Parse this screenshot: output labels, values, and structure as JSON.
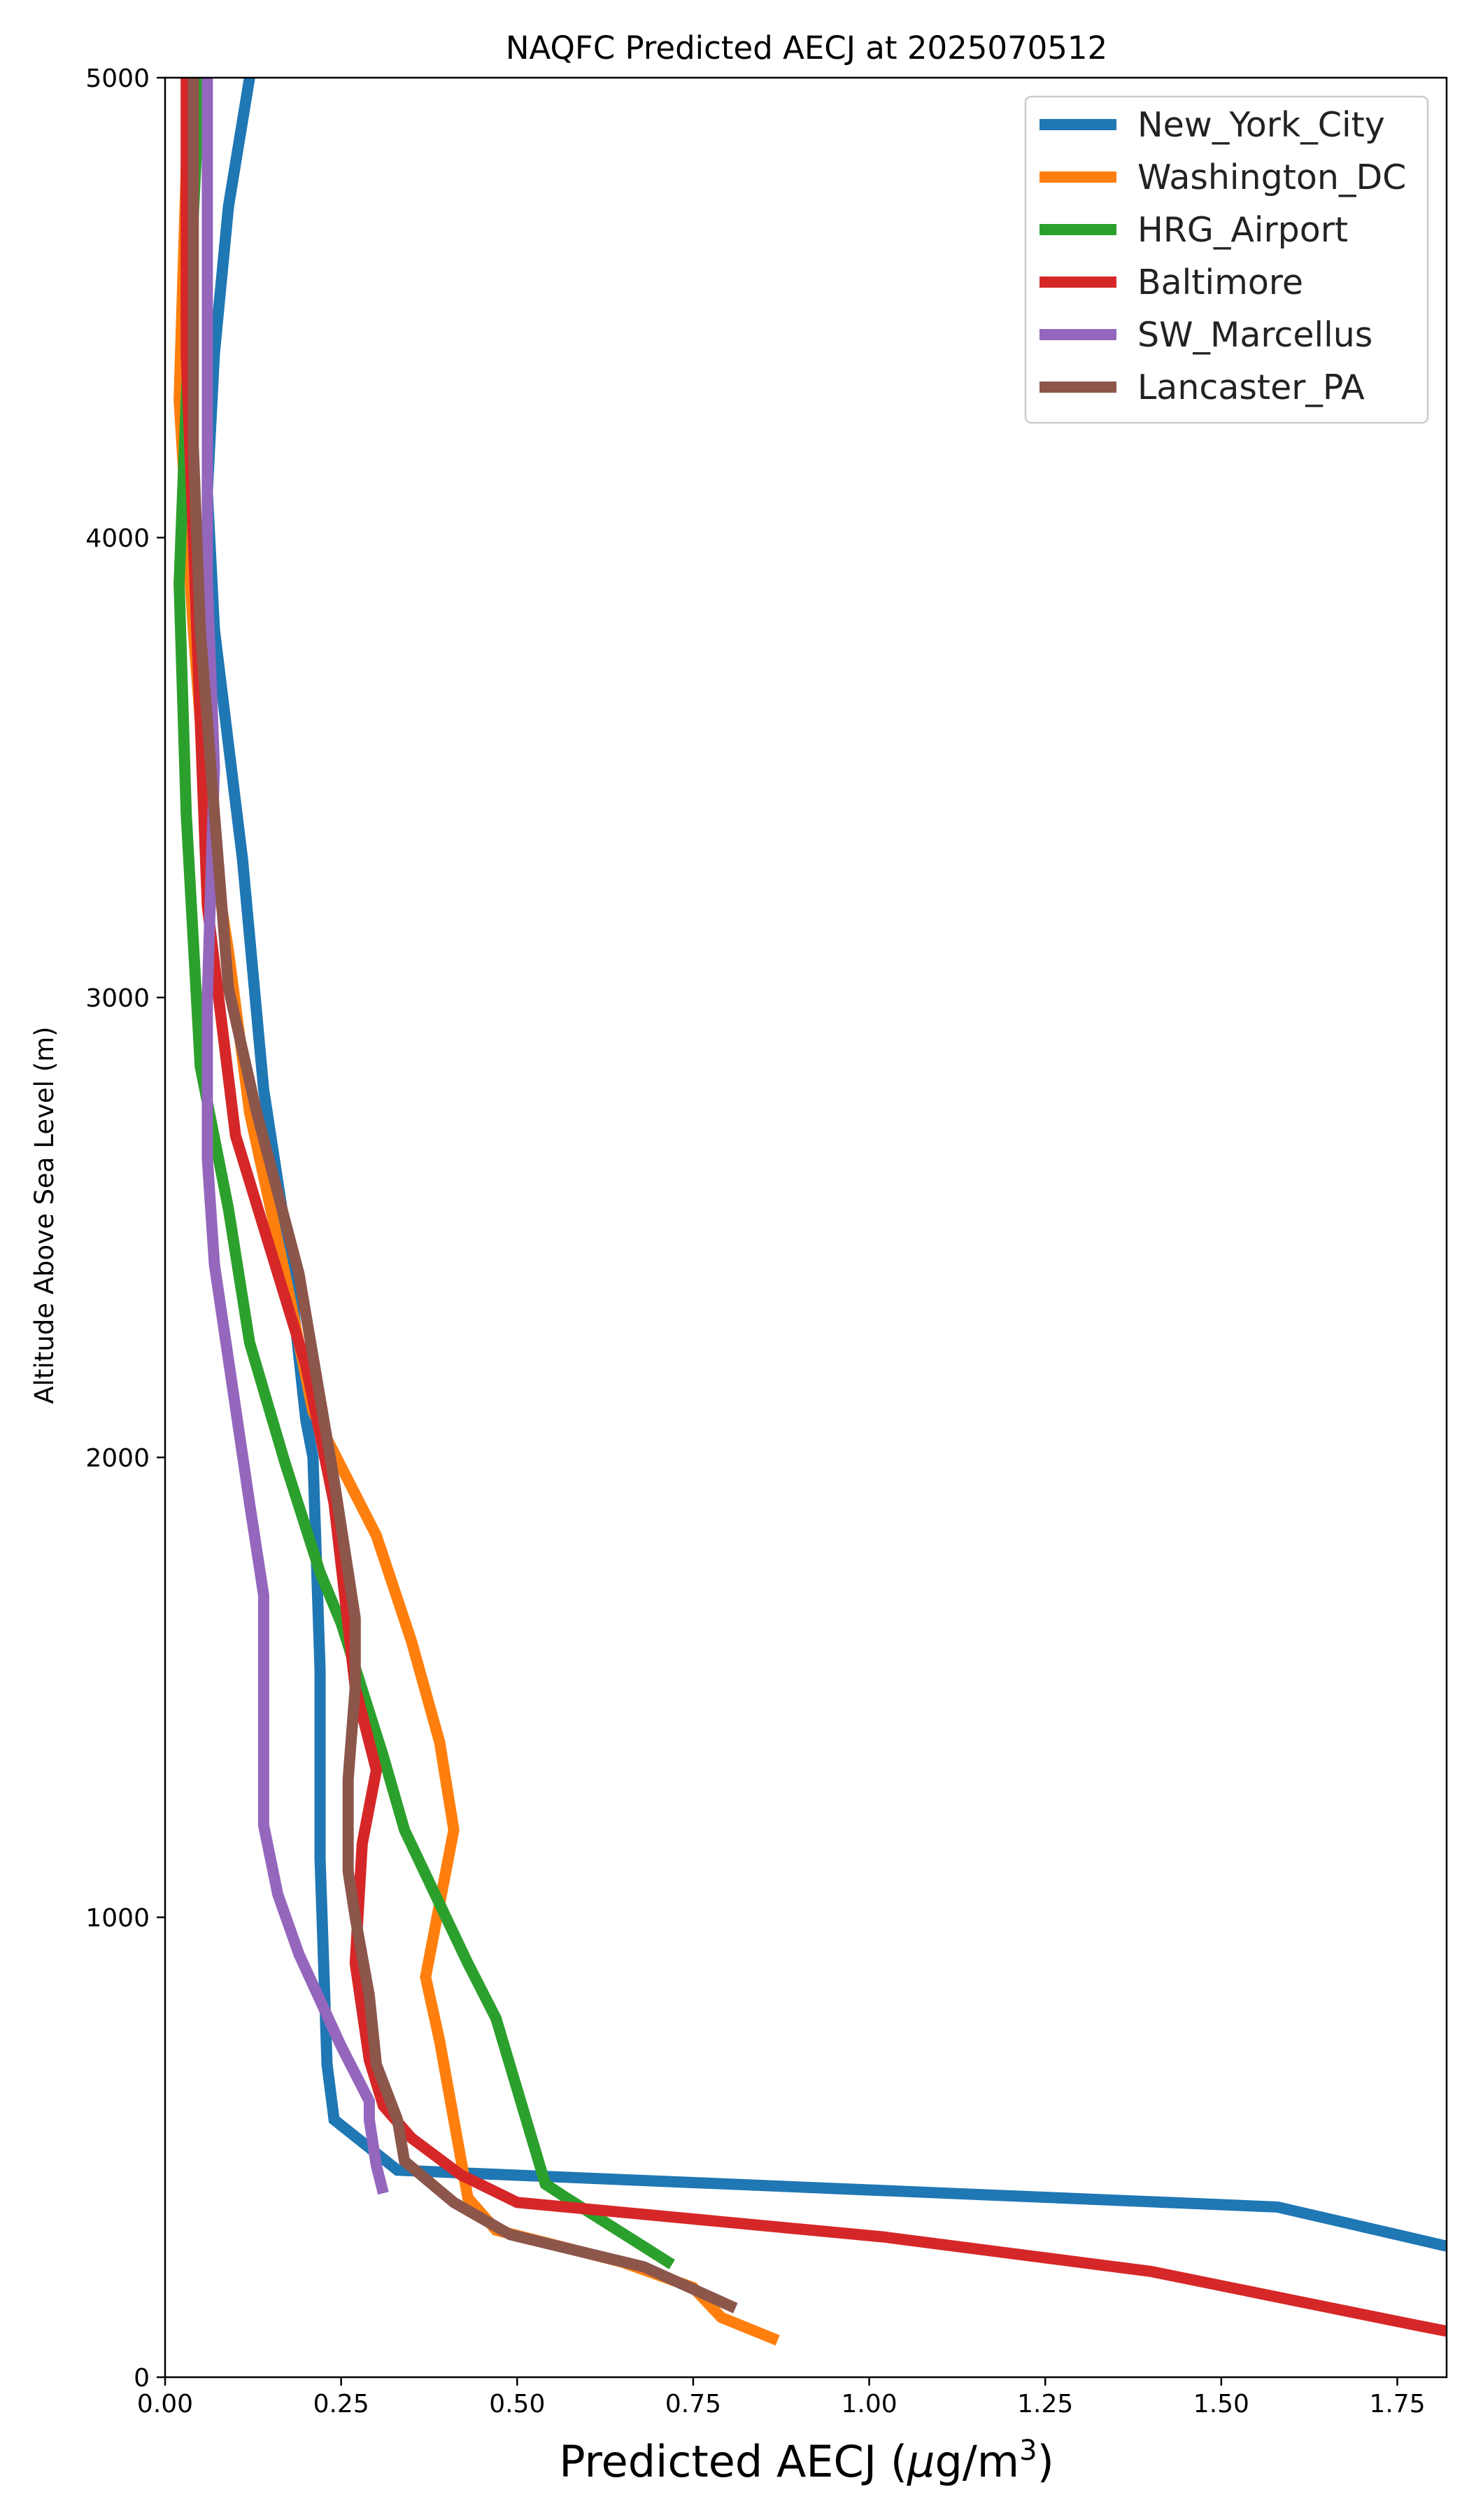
{
  "chart_data": {
    "type": "line",
    "title": "NAQFC Predicted AECJ at 2025070512",
    "xlabel": "Predicted AECJ (μg/m³)",
    "xlabel_main": "Predicted AECJ (",
    "xlabel_mu": "μ",
    "xlabel_unit": "g/m",
    "xlabel_sup": "3",
    "xlabel_close": ")",
    "ylabel": "Altitude Above Sea Level (m)",
    "xlim": [
      0,
      1.82
    ],
    "ylim": [
      0,
      5000
    ],
    "xticks": [
      0.0,
      0.25,
      0.5,
      0.75,
      1.0,
      1.25,
      1.5,
      1.75
    ],
    "xtick_labels": [
      "0.00",
      "0.25",
      "0.50",
      "0.75",
      "1.00",
      "1.25",
      "1.50",
      "1.75"
    ],
    "yticks": [
      0,
      1000,
      2000,
      3000,
      4000,
      5000
    ],
    "ytick_labels": [
      "0",
      "1000",
      "2000",
      "3000",
      "4000",
      "5000"
    ],
    "grid": false,
    "legend_position": "top-right",
    "series": [
      {
        "name": "New_York_City",
        "color": "#1f77b4",
        "points": [
          [
            1.82,
            285
          ],
          [
            1.58,
            370
          ],
          [
            0.33,
            450
          ],
          [
            0.24,
            560
          ],
          [
            0.23,
            680
          ],
          [
            0.22,
            1130
          ],
          [
            0.22,
            1540
          ],
          [
            0.21,
            2000
          ],
          [
            0.2,
            2080
          ],
          [
            0.17,
            2500
          ],
          [
            0.14,
            2800
          ],
          [
            0.11,
            3300
          ],
          [
            0.09,
            3550
          ],
          [
            0.07,
            3800
          ],
          [
            0.06,
            4100
          ],
          [
            0.07,
            4400
          ],
          [
            0.09,
            4720
          ],
          [
            0.12,
            5000
          ]
        ]
      },
      {
        "name": "Washington_DC",
        "color": "#ff7f0e",
        "points": [
          [
            0.87,
            80
          ],
          [
            0.79,
            130
          ],
          [
            0.75,
            195
          ],
          [
            0.65,
            250
          ],
          [
            0.47,
            320
          ],
          [
            0.43,
            390
          ],
          [
            0.39,
            730
          ],
          [
            0.37,
            870
          ],
          [
            0.41,
            1190
          ],
          [
            0.39,
            1380
          ],
          [
            0.35,
            1600
          ],
          [
            0.3,
            1830
          ],
          [
            0.21,
            2100
          ],
          [
            0.17,
            2400
          ],
          [
            0.12,
            2750
          ],
          [
            0.09,
            3100
          ],
          [
            0.06,
            3400
          ],
          [
            0.04,
            3800
          ],
          [
            0.02,
            4300
          ],
          [
            0.03,
            4800
          ],
          [
            0.04,
            5000
          ]
        ]
      },
      {
        "name": "HRG_Airport",
        "color": "#2ca02c",
        "points": [
          [
            0.72,
            245
          ],
          [
            0.57,
            390
          ],
          [
            0.54,
            420
          ],
          [
            0.47,
            780
          ],
          [
            0.43,
            900
          ],
          [
            0.34,
            1190
          ],
          [
            0.31,
            1350
          ],
          [
            0.25,
            1640
          ],
          [
            0.22,
            1750
          ],
          [
            0.17,
            1990
          ],
          [
            0.12,
            2250
          ],
          [
            0.09,
            2540
          ],
          [
            0.05,
            2850
          ],
          [
            0.03,
            3400
          ],
          [
            0.02,
            3900
          ],
          [
            0.03,
            4300
          ],
          [
            0.04,
            4700
          ],
          [
            0.05,
            5000
          ]
        ]
      },
      {
        "name": "Baltimore",
        "color": "#d62728",
        "points": [
          [
            1.82,
            100
          ],
          [
            1.77,
            115
          ],
          [
            1.4,
            230
          ],
          [
            1.02,
            305
          ],
          [
            0.5,
            380
          ],
          [
            0.42,
            440
          ],
          [
            0.35,
            520
          ],
          [
            0.31,
            590
          ],
          [
            0.29,
            690
          ],
          [
            0.27,
            900
          ],
          [
            0.28,
            1160
          ],
          [
            0.3,
            1320
          ],
          [
            0.27,
            1500
          ],
          [
            0.24,
            1900
          ],
          [
            0.2,
            2200
          ],
          [
            0.14,
            2500
          ],
          [
            0.1,
            2700
          ],
          [
            0.08,
            2950
          ],
          [
            0.06,
            3200
          ],
          [
            0.05,
            3600
          ],
          [
            0.04,
            4000
          ],
          [
            0.03,
            4400
          ],
          [
            0.03,
            4750
          ],
          [
            0.03,
            5000
          ]
        ]
      },
      {
        "name": "SW_Marcellus",
        "color": "#9467bd",
        "points": [
          [
            0.31,
            400
          ],
          [
            0.3,
            460
          ],
          [
            0.29,
            560
          ],
          [
            0.29,
            600
          ],
          [
            0.27,
            660
          ],
          [
            0.25,
            720
          ],
          [
            0.19,
            920
          ],
          [
            0.16,
            1050
          ],
          [
            0.14,
            1200
          ],
          [
            0.14,
            1300
          ],
          [
            0.14,
            1700
          ],
          [
            0.12,
            1900
          ],
          [
            0.07,
            2420
          ],
          [
            0.06,
            2650
          ],
          [
            0.06,
            3000
          ],
          [
            0.07,
            3500
          ],
          [
            0.06,
            3900
          ],
          [
            0.06,
            4300
          ],
          [
            0.06,
            4700
          ],
          [
            0.06,
            5000
          ]
        ]
      },
      {
        "name": "Lancaster_PA",
        "color": "#8c564b",
        "points": [
          [
            0.81,
            150
          ],
          [
            0.68,
            240
          ],
          [
            0.49,
            310
          ],
          [
            0.41,
            380
          ],
          [
            0.34,
            470
          ],
          [
            0.33,
            560
          ],
          [
            0.3,
            680
          ],
          [
            0.29,
            830
          ],
          [
            0.27,
            1000
          ],
          [
            0.26,
            1100
          ],
          [
            0.26,
            1300
          ],
          [
            0.27,
            1500
          ],
          [
            0.27,
            1650
          ],
          [
            0.24,
            1950
          ],
          [
            0.19,
            2400
          ],
          [
            0.13,
            2750
          ],
          [
            0.09,
            3020
          ],
          [
            0.07,
            3400
          ],
          [
            0.05,
            3800
          ],
          [
            0.04,
            4200
          ],
          [
            0.04,
            4600
          ],
          [
            0.04,
            5000
          ]
        ]
      }
    ]
  }
}
